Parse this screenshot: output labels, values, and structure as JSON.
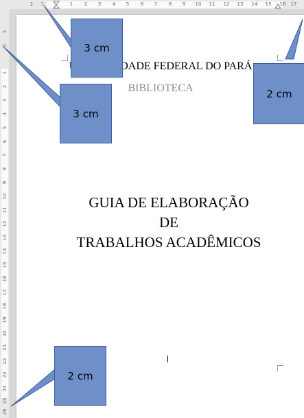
{
  "ruler": {
    "top_labels": [
      "2",
      "1",
      "1",
      "2",
      "3",
      "4",
      "5",
      "6",
      "7",
      "8",
      "9",
      "10",
      "11",
      "12",
      "13",
      "14",
      "15",
      "16",
      "17"
    ],
    "left_labels": [
      "2",
      "1",
      "1",
      "2",
      "3",
      "4",
      "5",
      "6",
      "7",
      "8",
      "9",
      "10",
      "11",
      "12",
      "13",
      "14",
      "15",
      "16",
      "17",
      "18",
      "19",
      "20",
      "21",
      "22",
      "23",
      "24",
      "25",
      "26"
    ]
  },
  "document": {
    "institution": "UNIVERSIDADE FEDERAL DO PARÁ",
    "library": "BIBLIOTECA",
    "title_line1": "GUIA DE ELABORAÇÃO",
    "title_line2": "DE",
    "title_line3": "TRABALHOS ACADÊMICOS"
  },
  "callouts": {
    "top_margin": "3 cm",
    "left_margin": "3 cm",
    "right_margin": "2 cm",
    "bottom_margin": "2 cm"
  },
  "colors": {
    "callout_fill": "#6f8fc9",
    "callout_border": "#3e5f99",
    "library_text": "#8c8c8c"
  }
}
